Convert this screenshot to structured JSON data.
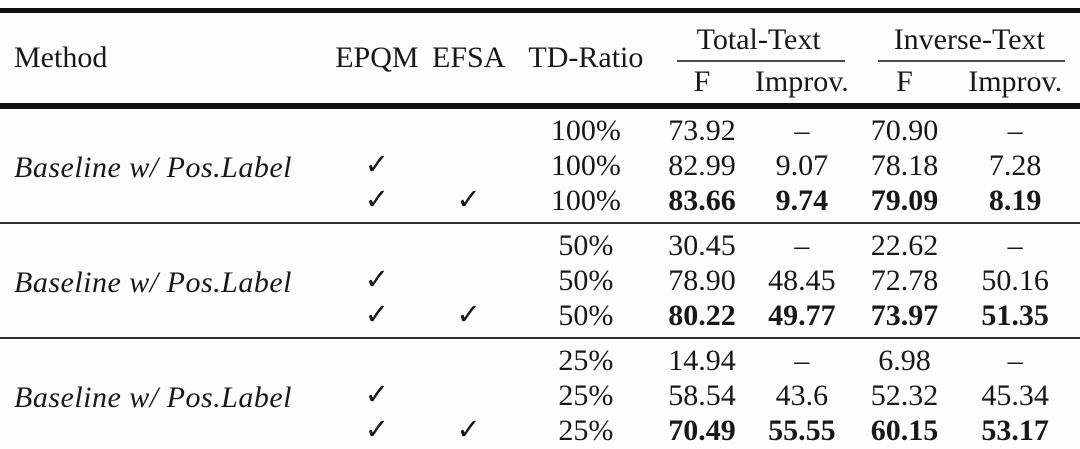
{
  "table": {
    "headers": {
      "method": "Method",
      "epqm": "EPQM",
      "efsa": "EFSA",
      "td_ratio": "TD-Ratio",
      "total_text": "Total-Text",
      "inverse_text": "Inverse-Text",
      "f": "F",
      "improv": "Improv."
    },
    "groups": [
      {
        "method": "Baseline w/ Pos.Label",
        "rows": [
          {
            "epqm": "",
            "efsa": "",
            "td_ratio": "100%",
            "tt_f": "73.92",
            "tt_improv": "–",
            "it_f": "70.90",
            "it_improv": "–"
          },
          {
            "epqm": "✓",
            "efsa": "",
            "td_ratio": "100%",
            "tt_f": "82.99",
            "tt_improv": "9.07",
            "it_f": "78.18",
            "it_improv": "7.28"
          },
          {
            "epqm": "✓",
            "efsa": "✓",
            "td_ratio": "100%",
            "tt_f": "83.66",
            "tt_improv": "9.74",
            "it_f": "79.09",
            "it_improv": "8.19"
          }
        ]
      },
      {
        "method": "Baseline w/ Pos.Label",
        "rows": [
          {
            "epqm": "",
            "efsa": "",
            "td_ratio": "50%",
            "tt_f": "30.45",
            "tt_improv": "–",
            "it_f": "22.62",
            "it_improv": "–"
          },
          {
            "epqm": "✓",
            "efsa": "",
            "td_ratio": "50%",
            "tt_f": "78.90",
            "tt_improv": "48.45",
            "it_f": "72.78",
            "it_improv": "50.16"
          },
          {
            "epqm": "✓",
            "efsa": "✓",
            "td_ratio": "50%",
            "tt_f": "80.22",
            "tt_improv": "49.77",
            "it_f": "73.97",
            "it_improv": "51.35"
          }
        ]
      },
      {
        "method": "Baseline w/ Pos.Label",
        "rows": [
          {
            "epqm": "",
            "efsa": "",
            "td_ratio": "25%",
            "tt_f": "14.94",
            "tt_improv": "–",
            "it_f": "6.98",
            "it_improv": "–"
          },
          {
            "epqm": "✓",
            "efsa": "",
            "td_ratio": "25%",
            "tt_f": "58.54",
            "tt_improv": "43.6",
            "it_f": "52.32",
            "it_improv": "45.34"
          },
          {
            "epqm": "✓",
            "efsa": "✓",
            "td_ratio": "25%",
            "tt_f": "70.49",
            "tt_improv": "55.55",
            "it_f": "60.15",
            "it_improv": "53.17"
          }
        ]
      }
    ],
    "colors": {
      "text": "#181818",
      "rule": "#0f0f0f",
      "background": "#fdfdfd"
    }
  }
}
